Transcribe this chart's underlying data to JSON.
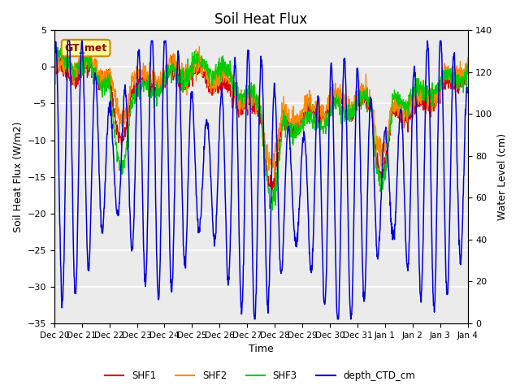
{
  "title": "Soil Heat Flux",
  "ylabel_left": "Soil Heat Flux (W/m2)",
  "ylabel_right": "Water Level (cm)",
  "xlabel": "Time",
  "ylim_left": [
    -35,
    5
  ],
  "ylim_right": [
    0,
    140
  ],
  "xtick_labels": [
    "Dec 20",
    "Dec 21",
    "Dec 22",
    "Dec 23",
    "Dec 24",
    "Dec 25",
    "Dec 26",
    "Dec 27",
    "Dec 28",
    "Dec 29",
    "Dec 30",
    "Dec 31",
    "Jan 1",
    "Jan 2",
    "Jan 3",
    "Jan 4"
  ],
  "colors": {
    "SHF1": "#dd0000",
    "SHF2": "#ff8800",
    "SHF3": "#00cc00",
    "depth_CTD_cm": "#0000dd"
  },
  "annotation_text": "GT_met",
  "annotation_facecolor": "#ffff99",
  "annotation_edgecolor": "#cc8800",
  "background_color": "#ebebeb",
  "grid_color": "#ffffff",
  "title_fontsize": 12
}
